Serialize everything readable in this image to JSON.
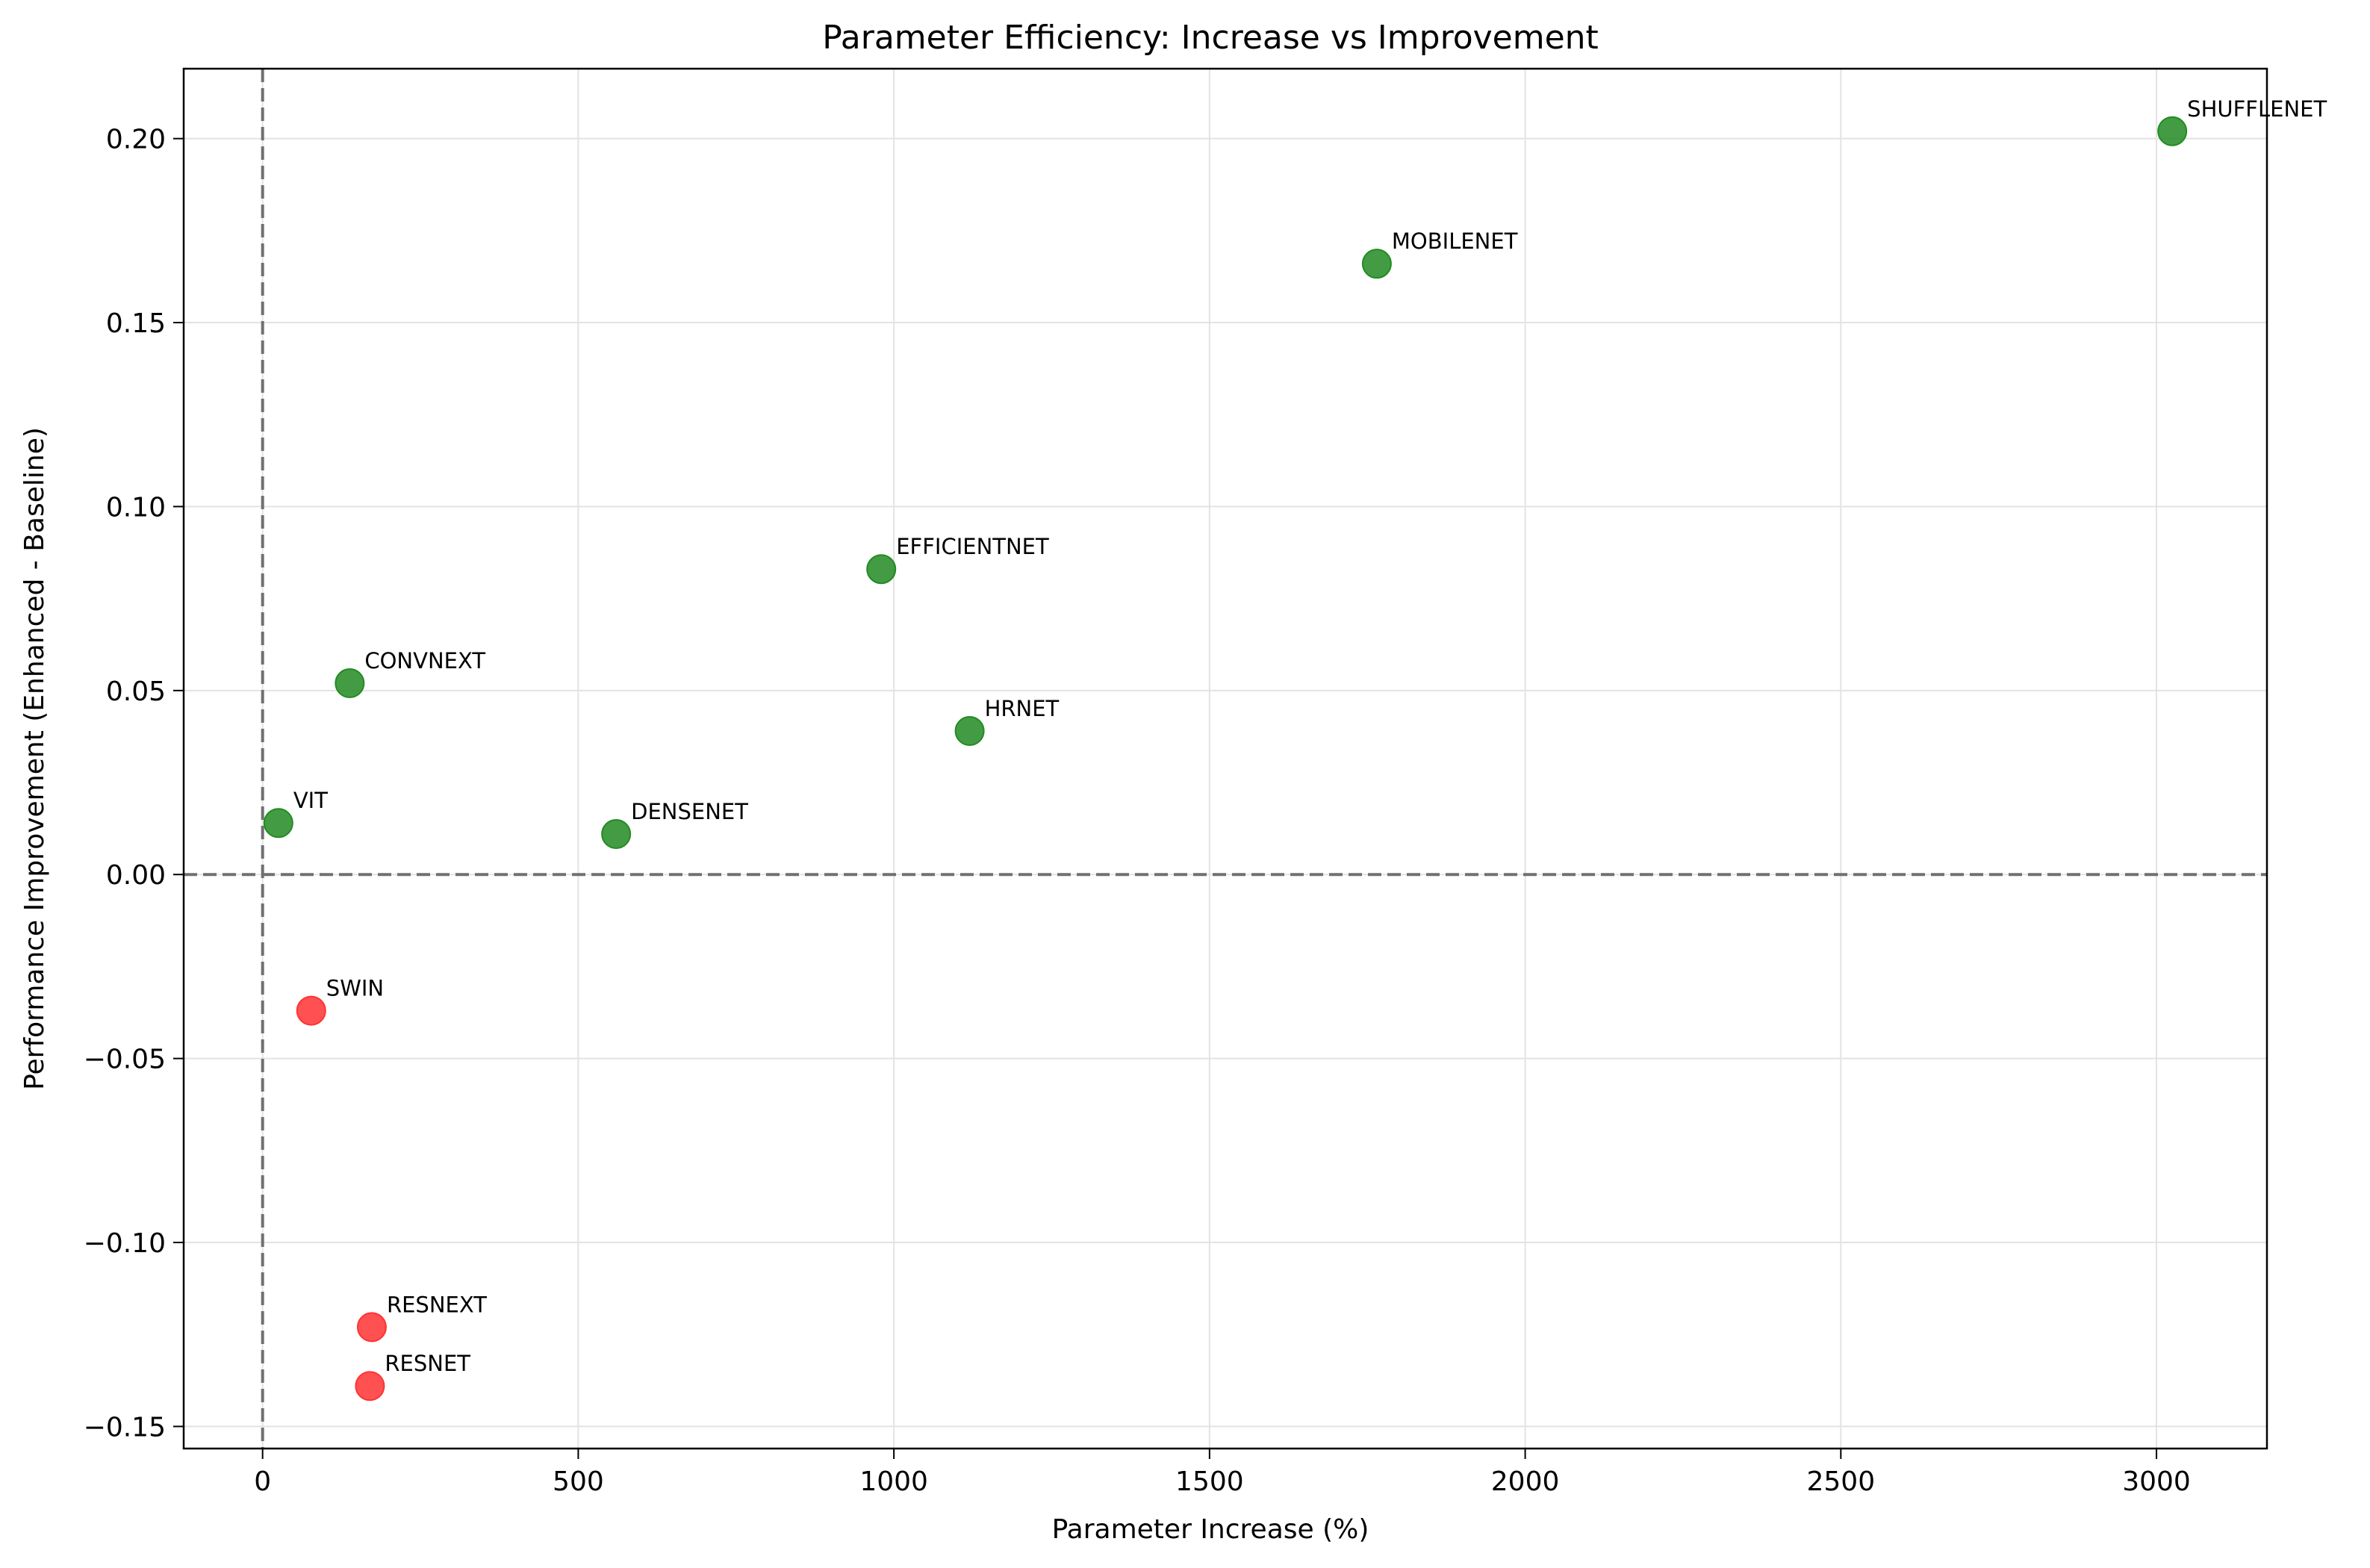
{
  "chart_data": {
    "type": "scatter",
    "title": "Parameter Efficiency: Increase vs Improvement",
    "xlabel": "Parameter Increase (%)",
    "ylabel": "Performance Improvement (Enhanced - Baseline)",
    "xlim": [
      -125,
      3175
    ],
    "ylim": [
      -0.156,
      0.219
    ],
    "xticks": [
      0,
      500,
      1000,
      1500,
      2000,
      2500,
      3000
    ],
    "yticks": [
      -0.15,
      -0.1,
      -0.05,
      0.0,
      0.05,
      0.1,
      0.15,
      0.2
    ],
    "ytick_labels": [
      "−0.15",
      "−0.10",
      "−0.05",
      "0.00",
      "0.05",
      "0.10",
      "0.15",
      "0.20"
    ],
    "grid": true,
    "reference_lines": {
      "x": 0,
      "y": 0,
      "style": "dashed",
      "color": "#707070"
    },
    "colors": {
      "positive": "#228B22",
      "negative": "#FF3333"
    },
    "points": [
      {
        "label": "SHUFFLENET",
        "x": 3025,
        "y": 0.202
      },
      {
        "label": "MOBILENET",
        "x": 1765,
        "y": 0.166
      },
      {
        "label": "EFFICIENTNET",
        "x": 980,
        "y": 0.083
      },
      {
        "label": "CONVNEXT",
        "x": 138,
        "y": 0.052
      },
      {
        "label": "HRNET",
        "x": 1120,
        "y": 0.039
      },
      {
        "label": "VIT",
        "x": 25,
        "y": 0.014
      },
      {
        "label": "DENSENET",
        "x": 560,
        "y": 0.011
      },
      {
        "label": "SWIN",
        "x": 77,
        "y": -0.037
      },
      {
        "label": "RESNEXT",
        "x": 173,
        "y": -0.123
      },
      {
        "label": "RESNET",
        "x": 170,
        "y": -0.139
      }
    ]
  }
}
